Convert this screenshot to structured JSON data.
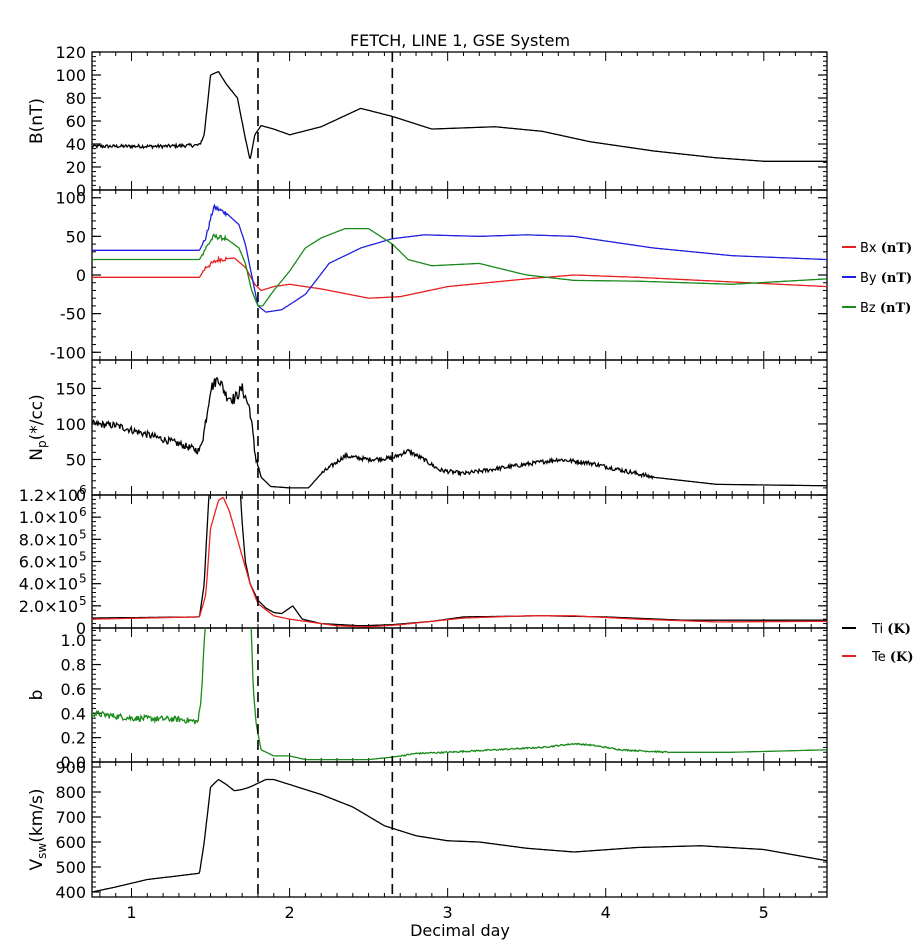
{
  "chart_data": {
    "title": "FETCH, LINE 1, GSE System",
    "type": "line",
    "xlabel": "Decimal day",
    "xlim": [
      0.75,
      5.4
    ],
    "xticks": [
      1,
      2,
      3,
      4,
      5
    ],
    "xtick_labels": [
      "1",
      "2",
      "3",
      "4",
      "5"
    ],
    "vlines": [
      1.8,
      2.65
    ],
    "panels": [
      {
        "id": "B",
        "ylabel": "B(nT)",
        "ylim": [
          0,
          120
        ],
        "yticks": [
          0,
          20,
          40,
          60,
          80,
          100,
          120
        ],
        "ytick_labels": [
          "0",
          "20",
          "40",
          "60",
          "80",
          "100",
          "120"
        ],
        "noise": [
          [
            0.75,
            1.45,
            1.5
          ]
        ],
        "series": [
          {
            "color": "#000000",
            "x": [
              0.75,
              1.0,
              1.2,
              1.43,
              1.46,
              1.5,
              1.55,
              1.6,
              1.67,
              1.72,
              1.75,
              1.78,
              1.82,
              1.9,
              2.0,
              2.2,
              2.45,
              2.65,
              2.9,
              3.3,
              3.6,
              3.9,
              4.3,
              4.7,
              5.0,
              5.4
            ],
            "y": [
              38,
              38,
              38,
              39,
              48,
              100,
              103,
              92,
              80,
              45,
              26,
              48,
              56,
              53,
              48,
              55,
              71,
              64,
              53,
              55,
              51,
              42,
              34,
              28,
              25,
              25
            ]
          }
        ]
      },
      {
        "id": "Bxyz",
        "ylabel": "",
        "ylim": [
          -110,
          110
        ],
        "yticks": [
          -100,
          -50,
          0,
          50,
          100
        ],
        "ytick_labels": [
          "-100",
          "-50",
          "0",
          "50",
          "100"
        ],
        "noise": [
          [
            1.45,
            1.6,
            3
          ]
        ],
        "legend": [
          {
            "name": "Bx",
            "unit": "(nT)",
            "color": "#e82020"
          },
          {
            "name": "By",
            "unit": "(nT)",
            "color": "#1f1fe0"
          },
          {
            "name": "Bz",
            "unit": "(nT)",
            "color": "#1a8a1a"
          }
        ],
        "series": [
          {
            "color": "#e82020",
            "x": [
              0.75,
              1.43,
              1.47,
              1.55,
              1.65,
              1.72,
              1.78,
              1.82,
              1.9,
              2.0,
              2.2,
              2.5,
              2.7,
              3.0,
              3.5,
              3.8,
              4.2,
              4.7,
              5.4
            ],
            "y": [
              -3,
              -3,
              10,
              20,
              22,
              10,
              -12,
              -20,
              -15,
              -12,
              -18,
              -30,
              -28,
              -15,
              -5,
              0,
              -3,
              -8,
              -15
            ]
          },
          {
            "color": "#1f1fe0",
            "x": [
              0.75,
              1.43,
              1.47,
              1.52,
              1.6,
              1.68,
              1.72,
              1.76,
              1.8,
              1.85,
              1.95,
              2.1,
              2.25,
              2.45,
              2.65,
              2.85,
              3.2,
              3.5,
              3.8,
              4.3,
              4.8,
              5.4
            ],
            "y": [
              32,
              32,
              48,
              88,
              80,
              65,
              40,
              0,
              -40,
              -48,
              -45,
              -25,
              15,
              35,
              47,
              52,
              50,
              52,
              50,
              35,
              25,
              20
            ]
          },
          {
            "color": "#1a8a1a",
            "x": [
              0.75,
              1.43,
              1.47,
              1.52,
              1.6,
              1.68,
              1.72,
              1.76,
              1.8,
              1.83,
              1.9,
              2.0,
              2.1,
              2.2,
              2.35,
              2.5,
              2.65,
              2.75,
              2.9,
              3.2,
              3.5,
              3.8,
              4.2,
              4.8,
              5.4
            ],
            "y": [
              20,
              20,
              35,
              50,
              47,
              35,
              15,
              -20,
              -40,
              -40,
              -20,
              5,
              35,
              48,
              60,
              60,
              40,
              20,
              12,
              15,
              0,
              -7,
              -8,
              -12,
              -5
            ]
          }
        ]
      },
      {
        "id": "Np",
        "ylabel": "N",
        "ylabel_sub": "p",
        "ylabel_tail": "(*/cc)",
        "ylim": [
          0,
          190
        ],
        "yticks": [
          0,
          50,
          100,
          150
        ],
        "ytick_labels": [
          "0",
          "50",
          "100",
          "150"
        ],
        "noise": [
          [
            0.75,
            1.45,
            5
          ],
          [
            1.45,
            1.8,
            8
          ],
          [
            2.2,
            4.3,
            3
          ]
        ],
        "series": [
          {
            "color": "#000000",
            "x": [
              0.75,
              0.9,
              1.1,
              1.3,
              1.43,
              1.46,
              1.5,
              1.55,
              1.6,
              1.65,
              1.7,
              1.75,
              1.78,
              1.82,
              1.88,
              2.0,
              2.12,
              2.2,
              2.35,
              2.5,
              2.65,
              2.75,
              2.85,
              2.95,
              3.1,
              3.4,
              3.7,
              3.9,
              4.1,
              4.3,
              4.7,
              5.4
            ],
            "y": [
              100,
              98,
              85,
              72,
              62,
              90,
              150,
              165,
              140,
              135,
              150,
              120,
              60,
              25,
              12,
              10,
              10,
              30,
              55,
              50,
              52,
              62,
              50,
              35,
              30,
              40,
              50,
              45,
              35,
              25,
              15,
              13
            ]
          }
        ]
      },
      {
        "id": "T",
        "ylabel": "",
        "ylim": [
          0,
          1200000
        ],
        "yticks": [
          0,
          200000,
          400000,
          600000,
          800000,
          1000000,
          1200000
        ],
        "ytick_labels": [
          "0",
          "2.0×10",
          "4.0×10",
          "6.0×10",
          "8.0×10",
          "1.0×10",
          "1.2×10"
        ],
        "ytick_exps": [
          "",
          "5",
          "5",
          "5",
          "5",
          "6",
          "6"
        ],
        "noise": [],
        "legend": [
          {
            "name": "Ti",
            "unit": "(K)",
            "color": "#000000"
          },
          {
            "name": "Te",
            "unit": "(K)",
            "color": "#e82020"
          }
        ],
        "series": [
          {
            "color": "#000000",
            "x": [
              0.75,
              1.43,
              1.46,
              1.48,
              1.49,
              1.5,
              1.68,
              1.69,
              1.7,
              1.72,
              1.75,
              1.8,
              1.85,
              1.9,
              1.95,
              2.02,
              2.08,
              2.2,
              2.45,
              2.65,
              2.9,
              3.1,
              3.6,
              4.0,
              4.5,
              5.4
            ],
            "y": [
              90000,
              100000,
              400000,
              950000,
              1200000,
              1300000,
              1300000,
              1200000,
              950000,
              600000,
              400000,
              250000,
              180000,
              140000,
              130000,
              200000,
              80000,
              40000,
              20000,
              30000,
              60000,
              100000,
              110000,
              100000,
              70000,
              70000
            ]
          },
          {
            "color": "#e82020",
            "x": [
              0.75,
              1.43,
              1.47,
              1.5,
              1.55,
              1.58,
              1.62,
              1.68,
              1.75,
              1.8,
              1.9,
              2.0,
              2.1,
              2.3,
              2.5,
              2.7,
              2.9,
              3.1,
              3.5,
              3.8,
              4.2,
              4.7,
              5.4
            ],
            "y": [
              80000,
              100000,
              300000,
              900000,
              1150000,
              1180000,
              1050000,
              750000,
              400000,
              220000,
              110000,
              80000,
              60000,
              20000,
              10000,
              30000,
              60000,
              90000,
              110000,
              110000,
              80000,
              55000,
              60000
            ]
          }
        ]
      },
      {
        "id": "beta",
        "ylabel": "b",
        "ylim": [
          0,
          1.1
        ],
        "yticks": [
          0,
          0.2,
          0.4,
          0.6,
          0.8,
          1.0
        ],
        "ytick_labels": [
          "0.0",
          "0.2",
          "0.4",
          "0.6",
          "0.8",
          "1.0"
        ],
        "noise": [
          [
            0.75,
            1.45,
            0.025
          ],
          [
            2.7,
            4.4,
            0.006
          ]
        ],
        "series": [
          {
            "color": "#1a8a1a",
            "x": [
              0.75,
              1.0,
              1.3,
              1.42,
              1.44,
              1.46,
              1.48,
              1.75,
              1.76,
              1.77,
              1.79,
              1.82,
              1.9,
              2.0,
              2.1,
              2.3,
              2.5,
              2.65,
              2.8,
              3.0,
              3.3,
              3.6,
              3.8,
              3.9,
              4.1,
              4.4,
              4.8,
              5.4
            ],
            "y": [
              0.4,
              0.36,
              0.35,
              0.33,
              0.5,
              1.0,
              1.3,
              1.3,
              1.0,
              0.6,
              0.3,
              0.1,
              0.05,
              0.05,
              0.02,
              0.02,
              0.02,
              0.04,
              0.07,
              0.08,
              0.1,
              0.12,
              0.15,
              0.14,
              0.1,
              0.08,
              0.08,
              0.1
            ]
          }
        ]
      },
      {
        "id": "Vsw",
        "ylabel": "V",
        "ylabel_sub": "sw",
        "ylabel_tail": "(km/s)",
        "ylim": [
          380,
          920
        ],
        "yticks": [
          400,
          500,
          600,
          700,
          800,
          900
        ],
        "ytick_labels": [
          "400",
          "500",
          "600",
          "700",
          "800",
          "900"
        ],
        "noise": [],
        "series": [
          {
            "color": "#000000",
            "x": [
              0.75,
              0.9,
              1.1,
              1.3,
              1.43,
              1.46,
              1.5,
              1.55,
              1.6,
              1.65,
              1.7,
              1.75,
              1.8,
              1.85,
              1.9,
              2.0,
              2.1,
              2.2,
              2.4,
              2.6,
              2.8,
              3.0,
              3.2,
              3.5,
              3.8,
              4.2,
              4.6,
              5.0,
              5.4
            ],
            "y": [
              400,
              420,
              450,
              465,
              475,
              600,
              820,
              850,
              830,
              805,
              810,
              820,
              835,
              850,
              850,
              830,
              810,
              790,
              740,
              665,
              625,
              605,
              600,
              575,
              560,
              578,
              585,
              570,
              525
            ]
          }
        ]
      }
    ]
  }
}
